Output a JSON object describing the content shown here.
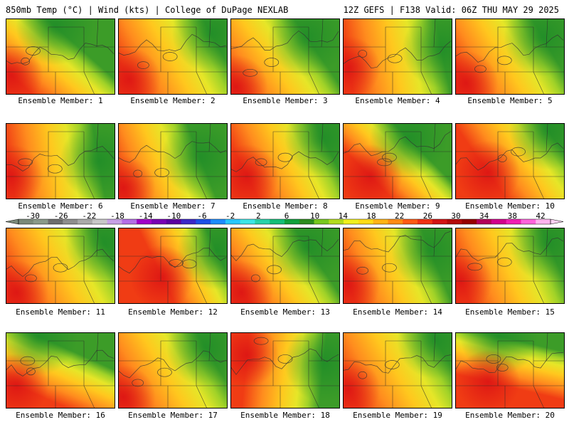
{
  "header": {
    "left": "850mb Temp (°C) | Wind (kts) | College of DuPage NEXLAB",
    "right": "12Z GEFS | F138 Valid: 06Z THU MAY 29 2025"
  },
  "member_label_prefix": "Ensemble Member:",
  "members": [
    {
      "id": "1",
      "warm": [
        0.05,
        0.75
      ],
      "cool": [
        0.45,
        0.1
      ],
      "level": 0.55
    },
    {
      "id": "2",
      "warm": [
        0.1,
        0.8
      ],
      "cool": [
        0.85,
        0.2
      ],
      "level": 0.45
    },
    {
      "id": "3",
      "warm": [
        0.05,
        0.9
      ],
      "cool": [
        0.7,
        0.25
      ],
      "level": 0.4
    },
    {
      "id": "4",
      "warm": [
        0.05,
        0.65
      ],
      "cool": [
        0.9,
        0.4
      ],
      "level": 0.6
    },
    {
      "id": "5",
      "warm": [
        0.1,
        0.85
      ],
      "cool": [
        0.8,
        0.25
      ],
      "level": 0.5
    },
    {
      "id": "6",
      "warm": [
        0.05,
        0.7
      ],
      "cool": [
        0.85,
        0.5
      ],
      "level": 0.55
    },
    {
      "id": "7",
      "warm": [
        0.05,
        0.85
      ],
      "cool": [
        0.75,
        0.45
      ],
      "level": 0.45
    },
    {
      "id": "8",
      "warm": [
        0.15,
        0.7
      ],
      "cool": [
        0.85,
        0.2
      ],
      "level": 0.6
    },
    {
      "id": "9",
      "warm": [
        0.25,
        0.7
      ],
      "cool": [
        0.6,
        0.2
      ],
      "level": 0.4
    },
    {
      "id": "10",
      "warm": [
        0.3,
        0.65
      ],
      "cool": [
        0.85,
        0.1
      ],
      "level": 0.55
    },
    {
      "id": "11",
      "warm": [
        0.1,
        0.85
      ],
      "cool": [
        0.9,
        0.2
      ],
      "level": 0.55
    },
    {
      "id": "12",
      "warm": [
        0.4,
        0.65
      ],
      "cool": [
        0.9,
        0.3
      ],
      "level": 0.5
    },
    {
      "id": "13",
      "warm": [
        0.1,
        0.85
      ],
      "cool": [
        0.7,
        0.25
      ],
      "level": 0.35
    },
    {
      "id": "14",
      "warm": [
        0.05,
        0.75
      ],
      "cool": [
        0.8,
        0.3
      ],
      "level": 0.3
    },
    {
      "id": "15",
      "warm": [
        0.05,
        0.7
      ],
      "cool": [
        0.85,
        0.2
      ],
      "level": 0.4
    },
    {
      "id": "16",
      "warm": [
        0.1,
        0.7
      ],
      "cool": [
        0.3,
        0.05
      ],
      "level": 0.5
    },
    {
      "id": "17",
      "warm": [
        0.05,
        0.85
      ],
      "cool": [
        0.8,
        0.2
      ],
      "level": 0.5
    },
    {
      "id": "18",
      "warm": [
        0.15,
        0.3
      ],
      "cool": [
        0.85,
        0.4
      ],
      "level": 0.45
    },
    {
      "id": "19",
      "warm": [
        0.05,
        0.75
      ],
      "cool": [
        0.85,
        0.1
      ],
      "level": 0.5
    },
    {
      "id": "20",
      "warm": [
        0.3,
        0.65
      ],
      "cool": [
        0.4,
        0.05
      ],
      "level": 0.5
    }
  ],
  "colorbar": {
    "labels": [
      "-30",
      "-26",
      "-22",
      "-18",
      "-14",
      "-10",
      "-6",
      "-2",
      "2",
      "6",
      "10",
      "14",
      "18",
      "22",
      "26",
      "30",
      "34",
      "38",
      "42"
    ],
    "colors": [
      "#7a8a7a",
      "#8a9a8a",
      "#6e6e6e",
      "#8e8e8e",
      "#aaaaaa",
      "#c8c8c8",
      "#c8a0e6",
      "#b46ee6",
      "#a000c8",
      "#7800b4",
      "#5a00a0",
      "#3c28c8",
      "#1e50e6",
      "#1e8cff",
      "#28c8ff",
      "#3ce6e6",
      "#28d2aa",
      "#14be78",
      "#10a03c",
      "#2d8c1e",
      "#78c81e",
      "#b4dc1e",
      "#f0f01e",
      "#ffdc14",
      "#ffb414",
      "#ff8c14",
      "#ff5a14",
      "#f03214",
      "#d21414",
      "#b40a0a",
      "#960000",
      "#b4005a",
      "#d2008c",
      "#f01eb4",
      "#ff64dc",
      "#ffb4f0"
    ]
  }
}
